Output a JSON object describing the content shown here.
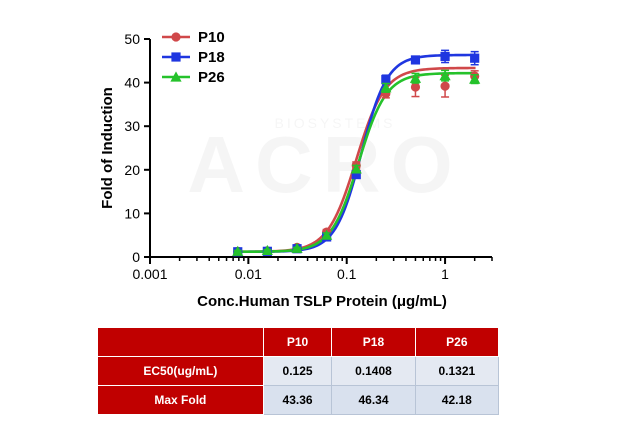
{
  "chart_data": {
    "type": "line",
    "title": "",
    "xlabel": "Conc.Human TSLP Protein (μg/mL)",
    "ylabel": "Fold of Induction",
    "x_scale": "log",
    "xlim": [
      0.001,
      3
    ],
    "ylim": [
      0,
      50
    ],
    "x_ticks": [
      0.001,
      0.01,
      0.1,
      1
    ],
    "x_tick_labels": [
      "0.001",
      "0.01",
      "0.1",
      "1"
    ],
    "y_ticks": [
      0,
      10,
      20,
      30,
      40,
      50
    ],
    "y_tick_labels": [
      "0",
      "10",
      "20",
      "30",
      "40",
      "50"
    ],
    "grid": false,
    "legend_position": "top-left",
    "x": [
      0.0078,
      0.0156,
      0.03125,
      0.0625,
      0.125,
      0.25,
      0.5,
      1,
      2
    ],
    "series": [
      {
        "name": "P10",
        "color": "#d0484a",
        "marker": "circle",
        "values": [
          1.3,
          1.4,
          2.2,
          5.7,
          21.0,
          37.5,
          39.0,
          39.2,
          41.5
        ],
        "error": [
          0.3,
          0.2,
          0.3,
          0.6,
          0.8,
          1.0,
          2.2,
          2.5,
          1.2
        ],
        "ec50": 0.125,
        "bottom": 1.2,
        "top": 43.36,
        "hill": 3.0
      },
      {
        "name": "P18",
        "color": "#1f36e0",
        "marker": "square",
        "values": [
          1.2,
          1.3,
          1.9,
          4.6,
          18.9,
          40.7,
          45.2,
          46.0,
          45.6
        ],
        "error": [
          0.2,
          0.2,
          0.2,
          0.5,
          0.7,
          1.0,
          0.8,
          1.4,
          1.5
        ],
        "ec50": 0.1408,
        "bottom": 1.2,
        "top": 46.34,
        "hill": 3.3
      },
      {
        "name": "P26",
        "color": "#25c22b",
        "marker": "triangle",
        "values": [
          1.3,
          1.5,
          2.0,
          5.0,
          20.2,
          38.8,
          41.0,
          41.6,
          40.8
        ],
        "error": [
          0.2,
          0.2,
          0.2,
          0.5,
          0.8,
          1.0,
          1.1,
          1.2,
          1.0
        ],
        "ec50": 0.1321,
        "bottom": 1.2,
        "top": 42.18,
        "hill": 3.1
      }
    ]
  },
  "watermark": {
    "top": "BIOSYSTEMS",
    "main": "ACRO"
  },
  "table": {
    "headers": [
      "",
      "P10",
      "P18",
      "P26"
    ],
    "rows": [
      {
        "label": "EC50(ug/mL)",
        "values": [
          "0.125",
          "0.1408",
          "0.1321"
        ]
      },
      {
        "label": "Max Fold",
        "values": [
          "43.36",
          "46.34",
          "42.18"
        ]
      }
    ],
    "header_color": "#c00000"
  }
}
